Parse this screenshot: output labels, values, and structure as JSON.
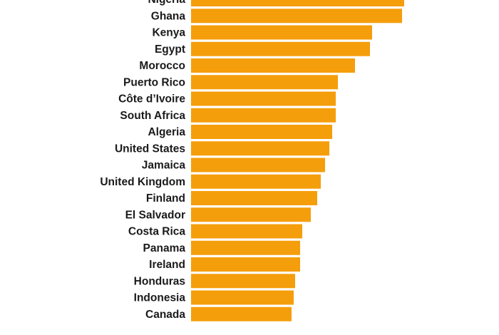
{
  "chart_data": {
    "type": "bar",
    "orientation": "horizontal",
    "categories": [
      "Nigeria",
      "Ghana",
      "Kenya",
      "Egypt",
      "Morocco",
      "Puerto Rico",
      "Côte d’Ivoire",
      "South Africa",
      "Algeria",
      "United States",
      "Jamaica",
      "United Kingdom",
      "Finland",
      "El Salvador",
      "Costa Rica",
      "Panama",
      "Ireland",
      "Honduras",
      "Indonesia",
      "Canada"
    ],
    "values": [
      299,
      296,
      254,
      251,
      230,
      206,
      203,
      203,
      198,
      194,
      188,
      182,
      177,
      168,
      156,
      153,
      153,
      146,
      144,
      141
    ],
    "color": "#f59e0b"
  }
}
